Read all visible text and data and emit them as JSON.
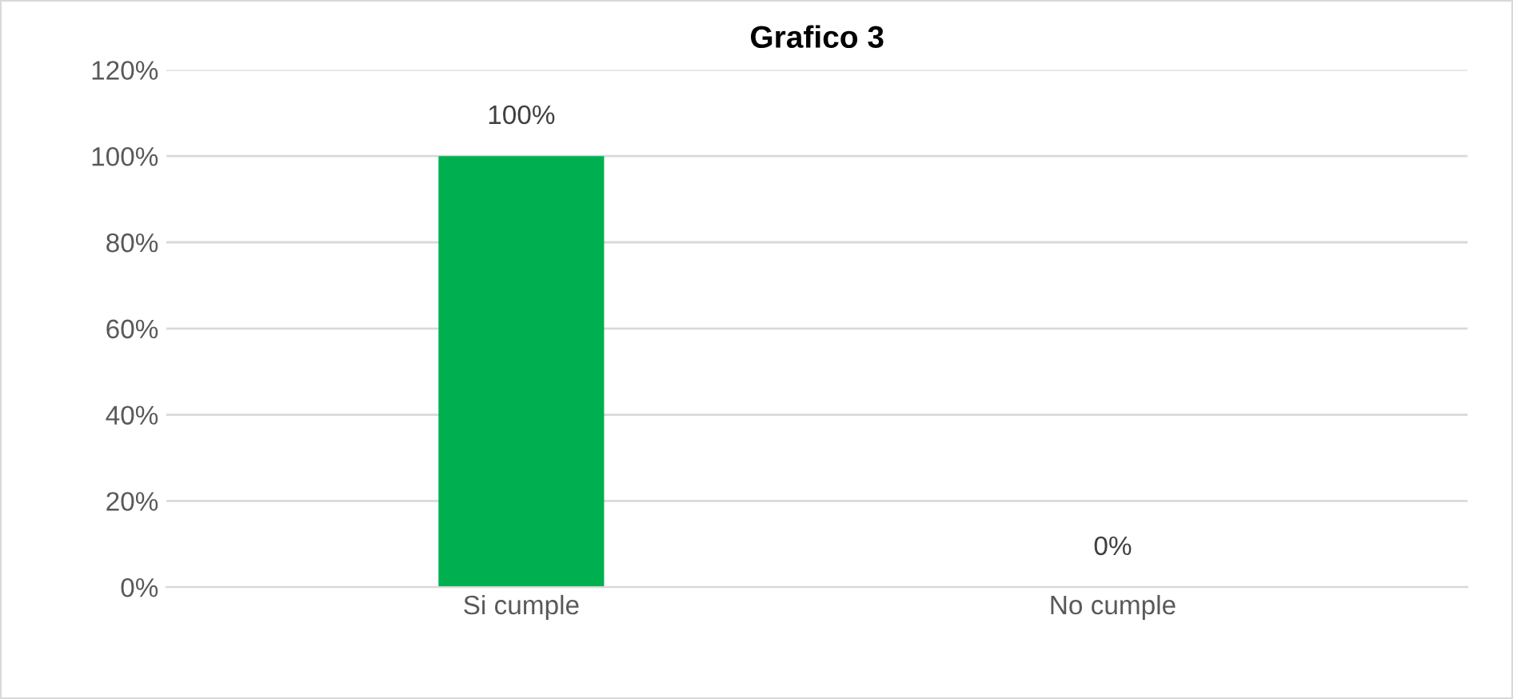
{
  "chart_data": {
    "type": "bar",
    "title": "Grafico 3",
    "categories": [
      "Si cumple",
      "No cumple"
    ],
    "values": [
      100,
      0
    ],
    "color": "#00b050",
    "value_labels": [
      "100%",
      "0%"
    ],
    "ylim": [
      0,
      120
    ],
    "yticks": [
      {
        "value": 0,
        "label": "0%"
      },
      {
        "value": 20,
        "label": "20%"
      },
      {
        "value": 40,
        "label": "40%"
      },
      {
        "value": 60,
        "label": "60%"
      },
      {
        "value": 80,
        "label": "80%"
      },
      {
        "value": 100,
        "label": "100%"
      },
      {
        "value": 120,
        "label": "120%"
      }
    ],
    "grid": "y"
  }
}
